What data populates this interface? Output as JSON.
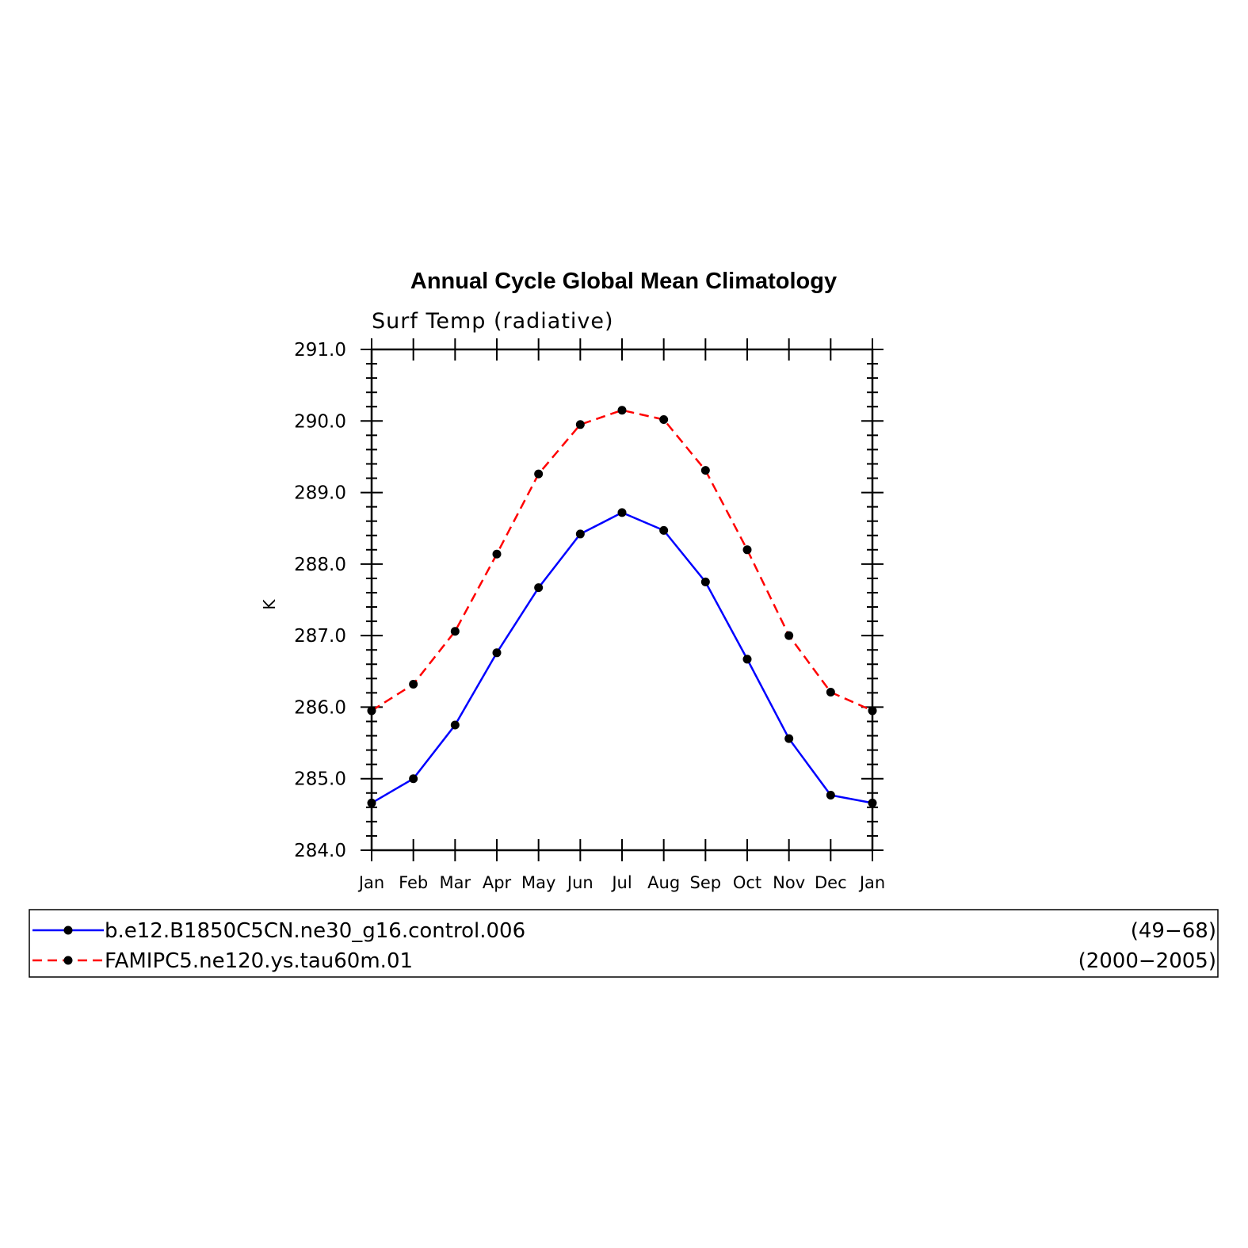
{
  "chart_data": {
    "type": "line",
    "title": "Annual Cycle Global Mean Climatology",
    "subtitle": "Surf Temp (radiative)",
    "xlabel": "",
    "ylabel": "K",
    "categories": [
      "Jan",
      "Feb",
      "Mar",
      "Apr",
      "May",
      "Jun",
      "Jul",
      "Aug",
      "Sep",
      "Oct",
      "Nov",
      "Dec",
      "Jan"
    ],
    "ylim": [
      284.0,
      291.0
    ],
    "yticks": [
      "284.0",
      "285.0",
      "286.0",
      "287.0",
      "288.0",
      "289.0",
      "290.0",
      "291.0"
    ],
    "grid": false,
    "series": [
      {
        "name": "b.e12.B1850C5CN.ne30_g16.control.006",
        "period": "(49−68)",
        "color": "#0000ff",
        "dash": "solid",
        "marker": "dot",
        "values": [
          284.66,
          285.0,
          285.75,
          286.76,
          287.67,
          288.42,
          288.72,
          288.47,
          287.75,
          286.67,
          285.56,
          284.77,
          284.66
        ]
      },
      {
        "name": "FAMIPC5.ne120.ys.tau60m.01",
        "period": "(2000−2005)",
        "color": "#ff0000",
        "dash": "dashed",
        "marker": "dot",
        "values": [
          285.95,
          286.32,
          287.06,
          288.14,
          289.26,
          289.95,
          290.15,
          290.02,
          289.31,
          288.2,
          287.0,
          286.21,
          285.95
        ]
      }
    ],
    "legend_position": "bottom"
  }
}
